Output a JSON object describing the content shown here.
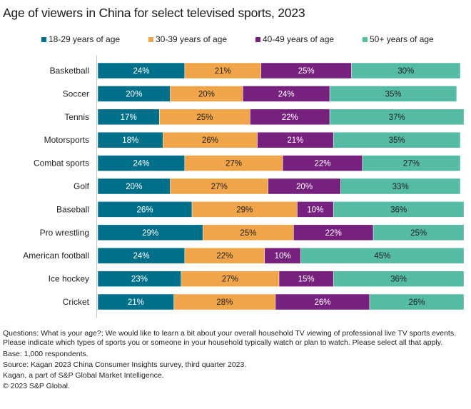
{
  "chart_data": {
    "type": "bar",
    "orientation": "horizontal",
    "stacked": true,
    "title": "Age of viewers in China for select televised sports, 2023",
    "xlabel": "",
    "ylabel": "",
    "xlim": [
      0,
      100
    ],
    "grid": false,
    "legend_position": "top",
    "categories": [
      "Basketball",
      "Soccer",
      "Tennis",
      "Motorsports",
      "Combat sports",
      "Golf",
      "Baseball",
      "Pro wrestling",
      "American football",
      "Ice hockey",
      "Cricket"
    ],
    "series": [
      {
        "name": "18-29 years of age",
        "color": "#006f8a",
        "label_color": "#ffffff",
        "values": [
          24,
          20,
          17,
          18,
          24,
          20,
          26,
          29,
          24,
          23,
          21
        ]
      },
      {
        "name": "30-39 years of age",
        "color": "#f1a54a",
        "label_color": "#222222",
        "values": [
          21,
          20,
          25,
          26,
          27,
          27,
          29,
          25,
          22,
          27,
          28
        ]
      },
      {
        "name": "40-49 years of age",
        "color": "#76217d",
        "label_color": "#ffffff",
        "values": [
          25,
          24,
          22,
          21,
          22,
          20,
          10,
          22,
          10,
          15,
          26
        ]
      },
      {
        "name": "50+ years of age",
        "color": "#55bba2",
        "label_color": "#222222",
        "values": [
          30,
          35,
          37,
          35,
          27,
          33,
          36,
          25,
          45,
          36,
          26
        ]
      }
    ],
    "value_suffix": "%"
  },
  "footnotes": [
    "Questions: What is your age?; We would like to learn a bit about your overall household TV viewing of professional live TV sports events. Please indicate which types of sports you or someone in your household typically watch or plan to watch. Please select all that apply.",
    "Base: 1,000 respondents.",
    "Source:  Kagan 2023 China Consumer Insights survey, third quarter 2023.",
    "Kagan, a part of S&P Global Market Intelligence.",
    "© 2023 S&P Global."
  ]
}
